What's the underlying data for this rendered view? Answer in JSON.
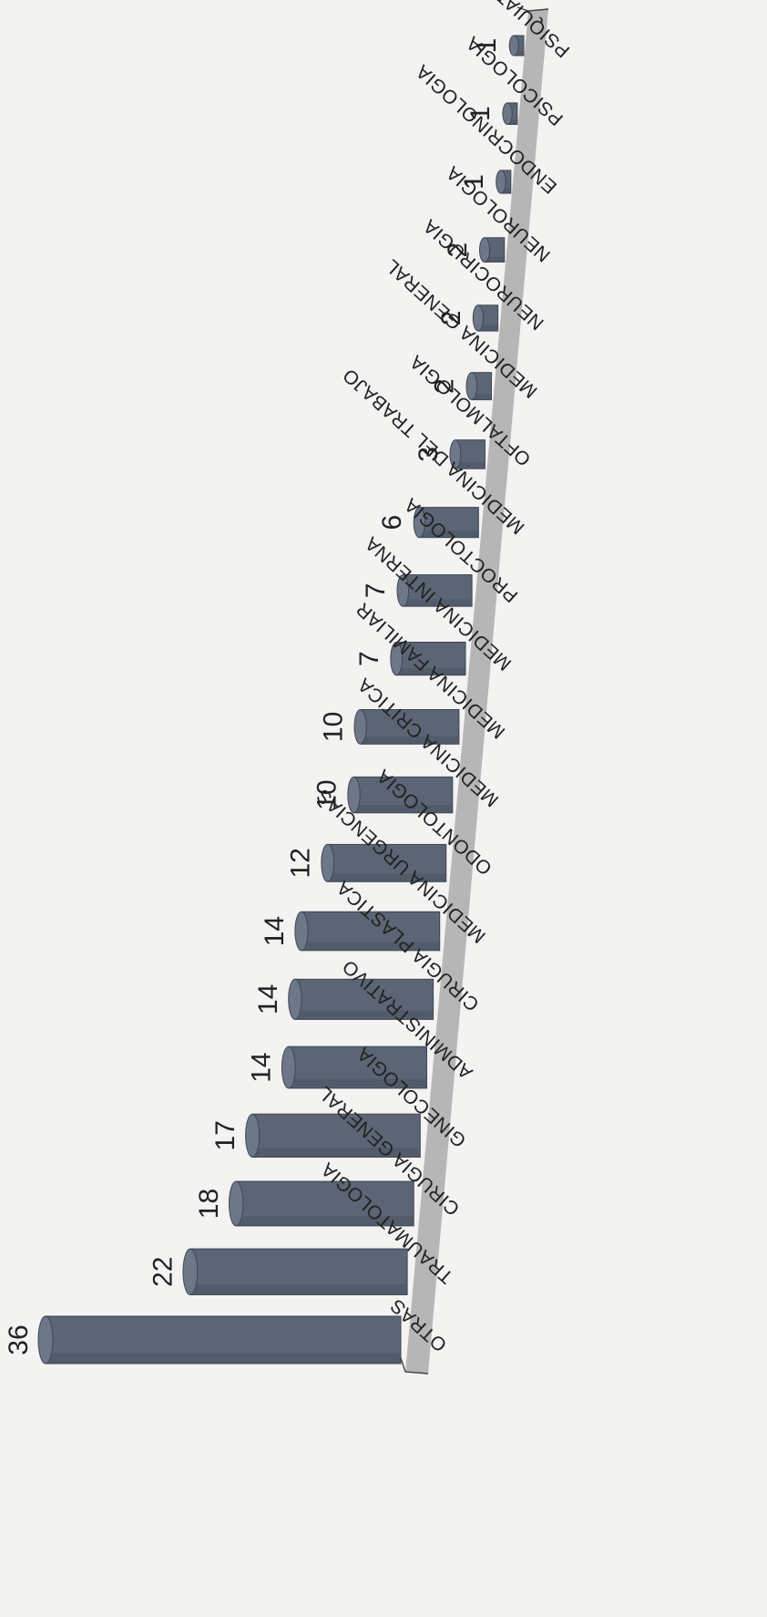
{
  "chart_data": {
    "type": "bar",
    "style": "3d-cylinder",
    "orientation": "rotated",
    "categories": [
      "OTRAS",
      "TRAUMATOLOGIA",
      "CIRUGIA GENERAL",
      "GINECOLOGIA",
      "ADMINISTRATIVO",
      "CIRUGIA PLASTICA",
      "MEDICINA URGENCIAS",
      "ODONTOLOGIA",
      "MEDICINA CRITICA",
      "MEDICINA FAMILIAR",
      "MEDICINA INTERNA",
      "PROCTOLOGIA",
      "MEDICINA DEL TRABAJO",
      "OFTALMOLOGIA",
      "MEDICINA GENERAL",
      "NEUROCIRUGIA",
      "NEUROLOGIA",
      "ENDOCRINOLOGIA",
      "PSICOLOGIA",
      "PSIQUIATRIA"
    ],
    "values": [
      36,
      22,
      18,
      17,
      14,
      14,
      14,
      12,
      10,
      10,
      7,
      7,
      6,
      3,
      2,
      2,
      2,
      1,
      1,
      1
    ],
    "data_labels": [
      "36",
      "22",
      "18",
      "17",
      "14",
      "14",
      "14",
      "12",
      "10",
      "10",
      "7",
      "7",
      "6",
      "3",
      "2",
      "2",
      "2",
      "1",
      "1",
      "1"
    ],
    "colors": {
      "bar": "#5b6575",
      "bar_cap": "#6d7787",
      "floor": "#b6b6b6",
      "background": "#f3f3f1"
    },
    "legend": "none",
    "grid": false
  }
}
